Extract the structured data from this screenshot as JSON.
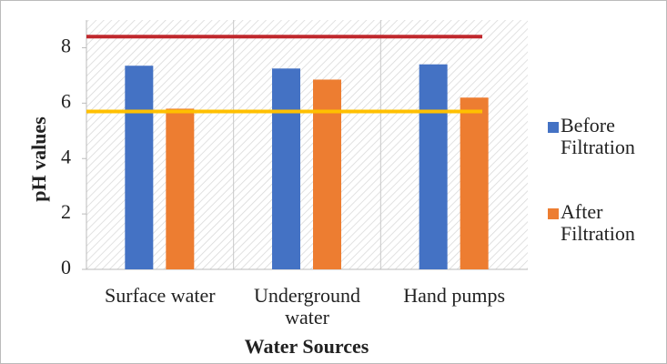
{
  "chart_data": {
    "type": "bar",
    "categories": [
      "Surface water",
      "Underground water",
      "Hand pumps"
    ],
    "series": [
      {
        "name": "Before Filtration",
        "color": "#4472c4",
        "values": [
          7.35,
          7.25,
          7.4
        ]
      },
      {
        "name": "After Filtration",
        "color": "#ed7d31",
        "values": [
          5.8,
          6.85,
          6.2
        ]
      }
    ],
    "reference_lines": [
      {
        "color": "#c0282d",
        "value": 8.4
      },
      {
        "color": "#ffc000",
        "value": 5.7
      }
    ],
    "ylabel": "pH values",
    "xlabel": "Water Sources",
    "ylim": [
      0,
      9
    ],
    "yticks": [
      0,
      2,
      4,
      6,
      8
    ],
    "grid": true,
    "legend": "right"
  }
}
